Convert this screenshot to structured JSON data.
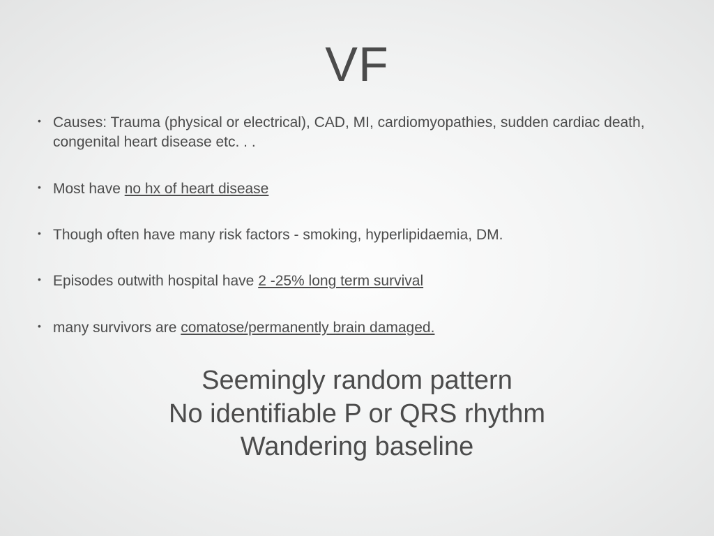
{
  "slide": {
    "title": "VF",
    "bullets": [
      {
        "pre": "Causes: Trauma (physical or electrical), CAD, MI, cardiomyopathies, sudden cardiac death, congenital heart disease etc. . .",
        "u": "",
        "post": ""
      },
      {
        "pre": "Most have ",
        "u": "no hx of heart disease",
        "post": ""
      },
      {
        "pre": "Though often have many risk factors - smoking, hyperlipidaemia, DM.",
        "u": "",
        "post": ""
      },
      {
        "pre": "Episodes outwith hospital have ",
        "u": "2 -25% long term survival",
        "post": ""
      },
      {
        "pre": "many survivors are ",
        "u": "comatose/permanently brain damaged.",
        "post": ""
      }
    ],
    "summary": {
      "line1": "Seemingly random pattern",
      "line2": "No identifiable P or QRS rhythm",
      "line3": "Wandering baseline"
    },
    "colors": {
      "text": "#4b4b4b",
      "bg_center": "#fdfdfd",
      "bg_edge": "#e3e4e4"
    },
    "typography": {
      "title_fontsize": 70,
      "bullet_fontsize": 21,
      "summary_fontsize": 38,
      "font_family": "Arial"
    }
  }
}
